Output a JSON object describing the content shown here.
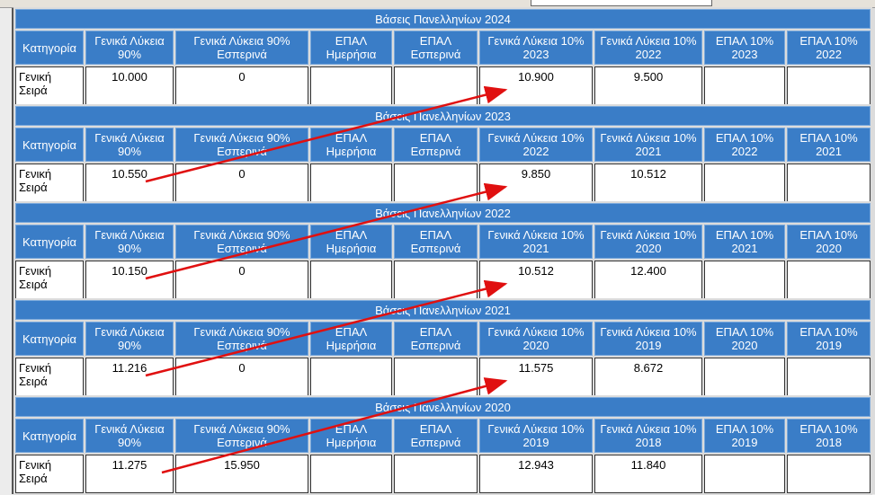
{
  "tables": [
    {
      "title": "Βάσεις Πανελληνίων 2024",
      "headers": [
        "Κατηγορία",
        "Γενικά Λύκεια 90%",
        "Γενικά Λύκεια 90% Εσπερινά",
        "ΕΠΑΛ Ημερήσια",
        "ΕΠΑΛ Εσπερινά",
        "Γενικά Λύκεια 10% 2023",
        "Γενικά Λύκεια 10% 2022",
        "ΕΠΑΛ 10% 2023",
        "ΕΠΑΛ 10% 2022"
      ],
      "rows": [
        [
          "Γενική Σειρά",
          "10.000",
          "0",
          null,
          null,
          "10.900",
          "9.500",
          null,
          null
        ]
      ]
    },
    {
      "title": "Βάσεις Πανελληνίων 2023",
      "headers": [
        "Κατηγορία",
        "Γενικά Λύκεια 90%",
        "Γενικά Λύκεια 90% Εσπερινά",
        "ΕΠΑΛ Ημερήσια",
        "ΕΠΑΛ Εσπερινά",
        "Γενικά Λύκεια 10% 2022",
        "Γενικά Λύκεια 10% 2021",
        "ΕΠΑΛ 10% 2022",
        "ΕΠΑΛ 10% 2021"
      ],
      "rows": [
        [
          "Γενική Σειρά",
          "10.550",
          "0",
          null,
          null,
          "9.850",
          "10.512",
          null,
          null
        ]
      ]
    },
    {
      "title": "Βάσεις Πανελληνίων 2022",
      "headers": [
        "Κατηγορία",
        "Γενικά Λύκεια 90%",
        "Γενικά Λύκεια 90% Εσπερινά",
        "ΕΠΑΛ Ημερήσια",
        "ΕΠΑΛ Εσπερινά",
        "Γενικά Λύκεια 10% 2021",
        "Γενικά Λύκεια 10% 2020",
        "ΕΠΑΛ 10% 2021",
        "ΕΠΑΛ 10% 2020"
      ],
      "rows": [
        [
          "Γενική Σειρά",
          "10.150",
          "0",
          null,
          null,
          "10.512",
          "12.400",
          null,
          null
        ]
      ]
    },
    {
      "title": "Βάσεις Πανελληνίων 2021",
      "headers": [
        "Κατηγορία",
        "Γενικά Λύκεια 90%",
        "Γενικά Λύκεια 90% Εσπερινά",
        "ΕΠΑΛ Ημερήσια",
        "ΕΠΑΛ Εσπερινά",
        "Γενικά Λύκεια 10% 2020",
        "Γενικά Λύκεια 10% 2019",
        "ΕΠΑΛ 10% 2020",
        "ΕΠΑΛ 10% 2019"
      ],
      "rows": [
        [
          "Γενική Σειρά",
          "11.216",
          "0",
          null,
          null,
          "11.575",
          "8.672",
          null,
          null
        ]
      ]
    },
    {
      "title": "Βάσεις Πανελληνίων 2020",
      "headers": [
        "Κατηγορία",
        "Γενικά Λύκεια 90%",
        "Γενικά Λύκεια 90% Εσπερινά",
        "ΕΠΑΛ Ημερήσια",
        "ΕΠΑΛ Εσπερινά",
        "Γενικά Λύκεια 10% 2019",
        "Γενικά Λύκεια 10% 2018",
        "ΕΠΑΛ 10% 2019",
        "ΕΠΑΛ 10% 2018"
      ],
      "rows": [
        [
          "Γενική Σειρά",
          "11.275",
          "15.950",
          null,
          null,
          "12.943",
          "11.840",
          null,
          null
        ]
      ]
    }
  ]
}
